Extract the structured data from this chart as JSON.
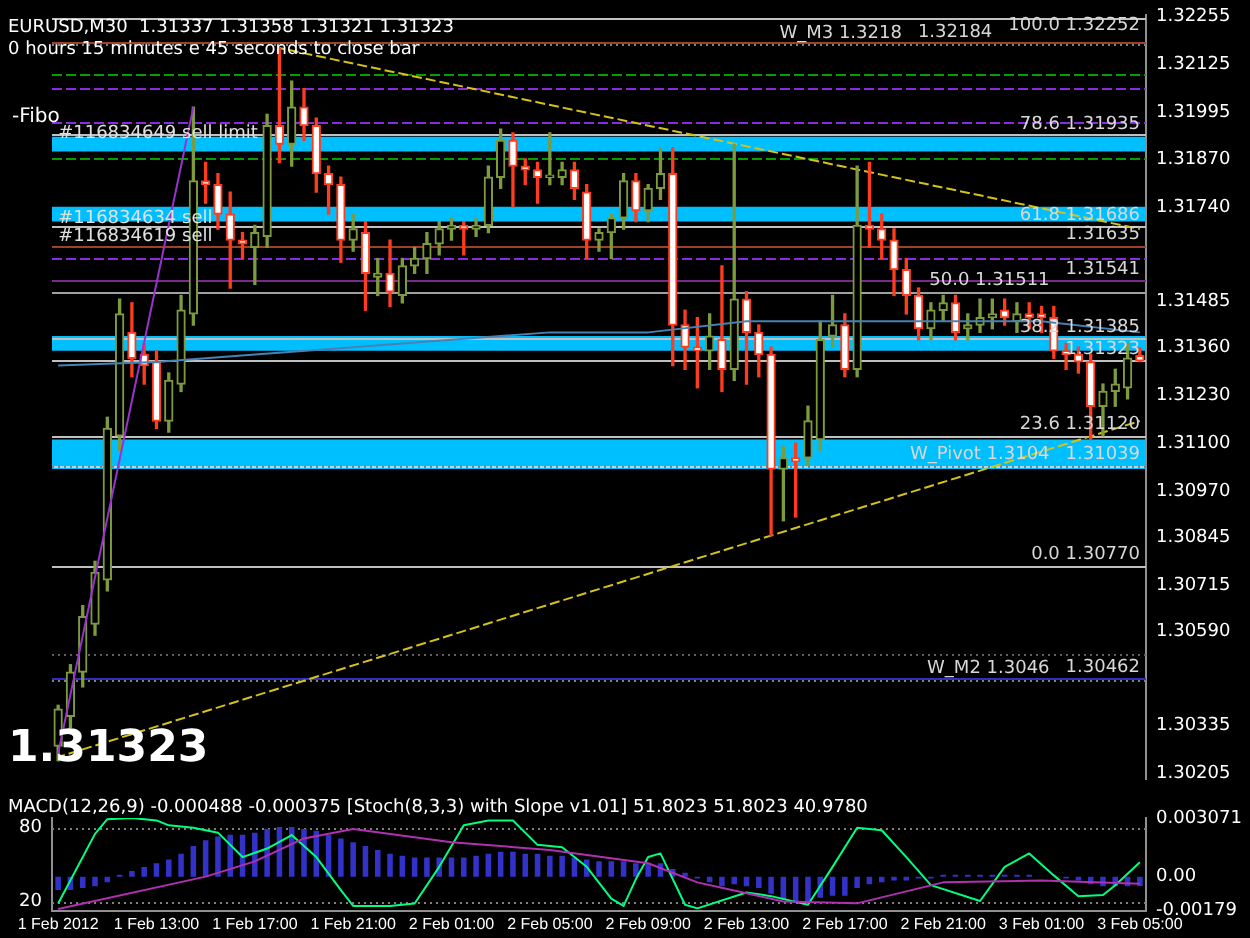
{
  "chart_data": [
    {
      "type": "candlestick",
      "title": "EURUSD,M30  1.31337 1.31358 1.31321 1.31323",
      "subtitle": "0 hours 15 minutes e 45 seconds to close bar",
      "categories": [
        "1 Feb 2012",
        null,
        null,
        null,
        null,
        null,
        null,
        null,
        "1 Feb 13:00",
        null,
        null,
        null,
        null,
        null,
        null,
        null,
        "1 Feb 17:00",
        null,
        null,
        null,
        null,
        null,
        null,
        null,
        "1 Feb 21:00",
        null,
        null,
        null,
        null,
        null,
        null,
        null,
        "2 Feb 01:00",
        null,
        null,
        null,
        null,
        null,
        null,
        null,
        "2 Feb 05:00",
        null,
        null,
        null,
        null,
        null,
        null,
        null,
        "2 Feb 09:00",
        null,
        null,
        null,
        null,
        null,
        null,
        null,
        "2 Feb 13:00",
        null,
        null,
        null,
        null,
        null,
        null,
        null,
        "2 Feb 17:00",
        null,
        null,
        null,
        null,
        null,
        null,
        null,
        "2 Feb 21:00",
        null,
        null,
        null,
        null,
        null,
        null,
        null,
        "3 Feb 01:00",
        null,
        null,
        null,
        null,
        null,
        null,
        null,
        "3 Feb 05:00"
      ],
      "ohlc": [
        [
          1.3028,
          1.3039,
          1.3024,
          1.3038
        ],
        [
          1.3036,
          1.305,
          1.3033,
          1.3048
        ],
        [
          1.3048,
          1.3066,
          1.3044,
          1.3063
        ],
        [
          1.3061,
          1.3078,
          1.3058,
          1.3075
        ],
        [
          1.3073,
          1.3117,
          1.307,
          1.3114
        ],
        [
          1.3112,
          1.3149,
          1.3108,
          1.3145
        ],
        [
          1.314,
          1.3148,
          1.3128,
          1.3133
        ],
        [
          1.3134,
          1.3137,
          1.3126,
          1.3131
        ],
        [
          1.3132,
          1.3135,
          1.3114,
          1.3116
        ],
        [
          1.3116,
          1.3129,
          1.3113,
          1.3127
        ],
        [
          1.3126,
          1.315,
          1.3124,
          1.3146
        ],
        [
          1.3145,
          1.3201,
          1.3142,
          1.3181
        ],
        [
          1.3181,
          1.3186,
          1.3175,
          1.318
        ],
        [
          1.318,
          1.3183,
          1.3168,
          1.3172
        ],
        [
          1.3172,
          1.3178,
          1.3152,
          1.3165
        ],
        [
          1.3165,
          1.3167,
          1.316,
          1.3164
        ],
        [
          1.3163,
          1.3169,
          1.3153,
          1.3167
        ],
        [
          1.3166,
          1.3199,
          1.3163,
          1.3196
        ],
        [
          1.3196,
          1.3217,
          1.3186,
          1.3191
        ],
        [
          1.3191,
          1.3208,
          1.3185,
          1.3201
        ],
        [
          1.3201,
          1.3206,
          1.3192,
          1.3196
        ],
        [
          1.3196,
          1.3198,
          1.3178,
          1.3183
        ],
        [
          1.3183,
          1.3185,
          1.3172,
          1.318
        ],
        [
          1.318,
          1.3182,
          1.3159,
          1.3165
        ],
        [
          1.3165,
          1.3172,
          1.3162,
          1.3168
        ],
        [
          1.3167,
          1.317,
          1.3146,
          1.3156
        ],
        [
          1.3155,
          1.316,
          1.315,
          1.3156
        ],
        [
          1.3156,
          1.3165,
          1.3147,
          1.3151
        ],
        [
          1.315,
          1.316,
          1.3148,
          1.3158
        ],
        [
          1.3158,
          1.3163,
          1.3156,
          1.316
        ],
        [
          1.316,
          1.3167,
          1.3156,
          1.3164
        ],
        [
          1.3164,
          1.317,
          1.3161,
          1.3168
        ],
        [
          1.3168,
          1.3171,
          1.3165,
          1.3169
        ],
        [
          1.3169,
          1.317,
          1.3161,
          1.3168
        ],
        [
          1.3168,
          1.3171,
          1.3166,
          1.3169
        ],
        [
          1.3169,
          1.3185,
          1.3167,
          1.3182
        ],
        [
          1.3182,
          1.3195,
          1.3179,
          1.3192
        ],
        [
          1.3192,
          1.3194,
          1.3174,
          1.3185
        ],
        [
          1.3185,
          1.3187,
          1.318,
          1.3184
        ],
        [
          1.3184,
          1.3186,
          1.3175,
          1.3182
        ],
        [
          1.3182,
          1.3194,
          1.318,
          1.3182
        ],
        [
          1.3182,
          1.3186,
          1.318,
          1.3184
        ],
        [
          1.3184,
          1.3186,
          1.3176,
          1.3179
        ],
        [
          1.3178,
          1.318,
          1.316,
          1.3165
        ],
        [
          1.3165,
          1.3168,
          1.3162,
          1.3167
        ],
        [
          1.3167,
          1.3172,
          1.316,
          1.3171
        ],
        [
          1.3171,
          1.3183,
          1.3168,
          1.3181
        ],
        [
          1.3181,
          1.3183,
          1.317,
          1.3173
        ],
        [
          1.3173,
          1.318,
          1.317,
          1.3179
        ],
        [
          1.3179,
          1.319,
          1.3176,
          1.3183
        ],
        [
          1.3183,
          1.319,
          1.3131,
          1.3142
        ],
        [
          1.3142,
          1.3146,
          1.313,
          1.3136
        ],
        [
          1.3136,
          1.3144,
          1.3125,
          1.3135
        ],
        [
          1.3135,
          1.3145,
          1.313,
          1.3139
        ],
        [
          1.3138,
          1.3158,
          1.3124,
          1.313
        ],
        [
          1.313,
          1.3191,
          1.3127,
          1.3149
        ],
        [
          1.3149,
          1.3151,
          1.3126,
          1.314
        ],
        [
          1.314,
          1.3142,
          1.3128,
          1.3134
        ],
        [
          1.3134,
          1.3136,
          1.3085,
          1.3103
        ],
        [
          1.3103,
          1.3109,
          1.3089,
          1.3106
        ],
        [
          1.3106,
          1.311,
          1.309,
          1.3105
        ],
        [
          1.3106,
          1.312,
          1.3104,
          1.3116
        ],
        [
          1.3111,
          1.3143,
          1.3108,
          1.3138
        ],
        [
          1.3139,
          1.315,
          1.3136,
          1.3142
        ],
        [
          1.3142,
          1.3145,
          1.3128,
          1.313
        ],
        [
          1.313,
          1.3185,
          1.3128,
          1.3169
        ],
        [
          1.3169,
          1.3186,
          1.3163,
          1.3168
        ],
        [
          1.3168,
          1.3172,
          1.316,
          1.3165
        ],
        [
          1.3165,
          1.3168,
          1.315,
          1.3157
        ],
        [
          1.3157,
          1.316,
          1.3145,
          1.315
        ],
        [
          1.315,
          1.3152,
          1.3138,
          1.3141
        ],
        [
          1.3141,
          1.3148,
          1.3138,
          1.3146
        ],
        [
          1.3146,
          1.315,
          1.3143,
          1.3148
        ],
        [
          1.3148,
          1.315,
          1.3138,
          1.314
        ],
        [
          1.3141,
          1.3145,
          1.3138,
          1.3142
        ],
        [
          1.3142,
          1.3149,
          1.314,
          1.3144
        ],
        [
          1.3144,
          1.3149,
          1.3141,
          1.3145
        ],
        [
          1.3146,
          1.3149,
          1.3142,
          1.3144
        ],
        [
          1.3143,
          1.3148,
          1.314,
          1.3145
        ],
        [
          1.3145,
          1.3148,
          1.3141,
          1.3144
        ],
        [
          1.3145,
          1.3147,
          1.314,
          1.3144
        ],
        [
          1.3144,
          1.3147,
          1.3133,
          1.3135
        ],
        [
          1.3135,
          1.3137,
          1.313,
          1.3134
        ],
        [
          1.3134,
          1.3136,
          1.3129,
          1.3132
        ],
        [
          1.3132,
          1.3134,
          1.3111,
          1.312
        ],
        [
          1.312,
          1.3126,
          1.3112,
          1.3124
        ],
        [
          1.3124,
          1.313,
          1.312,
          1.3126
        ],
        [
          1.3125,
          1.3137,
          1.3122,
          1.3133
        ],
        [
          1.31337,
          1.31358,
          1.31321,
          1.31323
        ]
      ],
      "series": [
        {
          "type": "line",
          "color": "#4682b4",
          "values": [
            1.3131,
            null,
            null,
            null,
            null,
            null,
            null,
            null,
            1.3132,
            null,
            null,
            null,
            null,
            null,
            null,
            null,
            1.3134,
            null,
            null,
            null,
            null,
            null,
            null,
            null,
            1.3136,
            null,
            null,
            null,
            null,
            null,
            null,
            null,
            1.3138,
            null,
            null,
            null,
            null,
            null,
            null,
            null,
            1.314,
            null,
            null,
            null,
            null,
            null,
            null,
            null,
            1.314,
            null,
            null,
            null,
            null,
            null,
            null,
            null,
            1.3143,
            null,
            null,
            null,
            null,
            null,
            null,
            null,
            1.3143,
            null,
            null,
            null,
            null,
            null,
            null,
            null,
            1.3143,
            null,
            null,
            null,
            null,
            null,
            null,
            null,
            1.3143,
            null,
            null,
            null,
            null,
            null,
            null,
            null,
            1.314
          ]
        },
        {
          "type": "line",
          "color": "#d4c21a",
          "line_style": "dashed",
          "values": [
            null,
            null,
            null,
            null,
            null,
            null,
            null,
            null,
            null,
            null,
            null,
            null,
            null,
            null,
            null,
            null,
            null,
            null,
            1.3217,
            null,
            null,
            null,
            null,
            null,
            null,
            null,
            null,
            null,
            null,
            null,
            null,
            null,
            null,
            null,
            null,
            null,
            null,
            null,
            null,
            null,
            null,
            null,
            null,
            null,
            null,
            null,
            null,
            null,
            null,
            null,
            null,
            null,
            null,
            null,
            null,
            null,
            null,
            null,
            null,
            null,
            null,
            null,
            null,
            null,
            null,
            null,
            null,
            null,
            null,
            null,
            null,
            null,
            null,
            null,
            null,
            null,
            null,
            null,
            null,
            null,
            null,
            null,
            null,
            null,
            null,
            null,
            null,
            null,
            1.3168
          ]
        },
        {
          "type": "line",
          "color": "#d4c21a",
          "line_style": "dashed",
          "values": [
            1.3025,
            null,
            null,
            null,
            null,
            null,
            null,
            null,
            null,
            null,
            null,
            null,
            null,
            null,
            null,
            null,
            null,
            null,
            null,
            null,
            null,
            null,
            null,
            null,
            null,
            null,
            null,
            null,
            null,
            null,
            null,
            null,
            null,
            null,
            null,
            null,
            null,
            null,
            null,
            null,
            null,
            null,
            null,
            null,
            null,
            null,
            null,
            null,
            null,
            null,
            null,
            null,
            null,
            null,
            null,
            null,
            null,
            null,
            null,
            null,
            null,
            null,
            null,
            null,
            null,
            null,
            null,
            null,
            null,
            null,
            null,
            null,
            null,
            null,
            null,
            null,
            null,
            null,
            null,
            null,
            null,
            null,
            null,
            null,
            null,
            null,
            null,
            null,
            1.3116
          ]
        },
        {
          "type": "line",
          "color": "#9a32cd",
          "values": [
            1.3026,
            null,
            null,
            null,
            null,
            null,
            null,
            null,
            null,
            null,
            null,
            1.3201,
            null,
            null,
            null,
            null,
            null,
            null,
            null,
            null,
            null,
            null,
            null,
            null,
            null,
            null,
            null,
            null,
            null,
            null,
            null,
            null,
            null,
            null,
            null,
            null,
            null,
            null,
            null,
            null,
            null,
            null,
            null,
            null,
            null,
            null,
            null,
            null,
            null,
            null,
            null,
            null,
            null,
            null,
            null,
            null,
            null,
            null,
            null,
            null,
            null,
            null,
            null,
            null,
            null,
            null,
            null,
            null,
            null,
            null,
            null,
            null,
            null,
            null,
            null,
            null,
            null,
            null,
            null,
            null,
            null,
            null,
            null,
            null,
            null,
            null,
            null,
            null,
            null
          ]
        }
      ],
      "ylim": [
        1.3019,
        1.3226
      ],
      "yticks": [
        1.32255,
        1.32125,
        1.31995,
        {
          "value": 1.3187,
          "label": "1.31870"
        },
        {
          "value": 1.3174,
          "label": "1.31740"
        },
        1.31485,
        {
          "value": 1.3136,
          "label": "1.31360"
        },
        {
          "value": 1.3123,
          "label": "1.31230"
        },
        {
          "value": 1.311,
          "label": "1.31100"
        },
        {
          "value": 1.3097,
          "label": "1.30970"
        },
        1.30845,
        1.30715,
        {
          "value": 1.3059,
          "label": "1.30590"
        },
        1.30335,
        1.30205
      ],
      "tick_labels": "y",
      "bands": [
        {
          "axis": "y",
          "from": 1.3189,
          "to": 1.3193,
          "color": "#00bfff"
        },
        {
          "axis": "y",
          "from": 1.317,
          "to": 1.3174,
          "color": "#00bfff"
        },
        {
          "axis": "y",
          "from": 1.3135,
          "to": 1.3139,
          "color": "#00bfff"
        },
        {
          "axis": "y",
          "from": 1.3103,
          "to": 1.3111,
          "color": "#00bfff"
        }
      ],
      "ref_lines": [
        {
          "axis": "y",
          "value": 1.32252,
          "label": "100.0 1.32252",
          "color": "#c0c0c0"
        },
        {
          "axis": "y",
          "value": 1.32184,
          "label": "1.32184",
          "color": "#a0402a"
        },
        {
          "axis": "y",
          "value": 1.3218,
          "label": "W_M3 1.3218",
          "color": "#808080",
          "line_style": "dotted"
        },
        {
          "axis": "y",
          "value": 1.321,
          "color": "#00a000",
          "line_style": "dashed"
        },
        {
          "axis": "y",
          "value": 1.3206,
          "color": "#8a2be2",
          "line_style": "dashed"
        },
        {
          "axis": "y",
          "value": 1.3197,
          "color": "#8a2be2",
          "line_style": "dashed"
        },
        {
          "axis": "y",
          "value": 1.31935,
          "label": "78.6 1.31935",
          "color": "#c0c0c0"
        },
        {
          "axis": "y",
          "value": 1.3187,
          "color": "#00a000",
          "line_style": "dashed"
        },
        {
          "axis": "y",
          "value": 1.31686,
          "label": "61.8 1.31686",
          "color": "#c0c0c0"
        },
        {
          "axis": "y",
          "value": 1.31635,
          "label": "1.31635",
          "color": "#a0402a"
        },
        {
          "axis": "y",
          "value": 1.316,
          "color": "#8a2be2",
          "line_style": "dashed"
        },
        {
          "axis": "y",
          "value": 1.31541,
          "label": "1.31541",
          "color": "#7a2a8a"
        },
        {
          "axis": "y",
          "value": 1.31511,
          "label": "50.0 1.31511",
          "color": "#a0a0a0"
        },
        {
          "axis": "y",
          "value": 1.31385,
          "label": "38.2 1.31385",
          "color": "#c0c0c0"
        },
        {
          "axis": "y",
          "value": 1.31323,
          "label": "1.31323",
          "color": "#c0c0c0"
        },
        {
          "axis": "y",
          "value": 1.3112,
          "label": "23.6 1.31120",
          "color": "#c0c0c0"
        },
        {
          "axis": "y",
          "value": 1.31039,
          "label": "1.31039",
          "color": "#add8e6"
        },
        {
          "axis": "y",
          "value": 1.3104,
          "label": "W_Pivot 1.3104",
          "color": "#808080",
          "line_style": "dotted"
        },
        {
          "axis": "y",
          "value": 1.3077,
          "label": "0.0 1.30770",
          "color": "#c0c0c0"
        },
        {
          "axis": "y",
          "value": 1.3053,
          "color": "#606060",
          "line_style": "dotted"
        },
        {
          "axis": "y",
          "value": 1.30462,
          "label": "1.30462",
          "color": "#3030c0"
        },
        {
          "axis": "y",
          "value": 1.3046,
          "label": "W_M2 1.3046",
          "color": "#808080",
          "line_style": "dotted"
        }
      ],
      "annotations": [
        "-Fibo",
        {
          "text": "#116834649 sell limit",
          "x": "1 Feb 2012",
          "y": 1.3191
        },
        {
          "text": "#116834634 sell",
          "x": "1 Feb 2012",
          "y": 1.3168
        },
        {
          "text": "#116834619 sell",
          "x": "1 Feb 2012",
          "y": 1.3163
        },
        "1.31323"
      ]
    },
    {
      "type": "bar",
      "title": "MACD(12,26,9) -0.000488 -0.000375 [Stoch(8,3,3) with Slope v1.01] 51.8023 51.8023 40.9780",
      "categories": [
        "1 Feb 2012",
        null,
        null,
        null,
        null,
        null,
        null,
        null,
        "1 Feb 13:00",
        null,
        null,
        null,
        null,
        null,
        null,
        null,
        "1 Feb 17:00",
        null,
        null,
        null,
        null,
        null,
        null,
        null,
        "1 Feb 21:00",
        null,
        null,
        null,
        null,
        null,
        null,
        null,
        "2 Feb 01:00",
        null,
        null,
        null,
        null,
        null,
        null,
        null,
        "2 Feb 05:00",
        null,
        null,
        null,
        null,
        null,
        null,
        null,
        "2 Feb 09:00",
        null,
        null,
        null,
        null,
        null,
        null,
        null,
        "2 Feb 13:00",
        null,
        null,
        null,
        null,
        null,
        null,
        null,
        "2 Feb 17:00",
        null,
        null,
        null,
        null,
        null,
        null,
        null,
        "2 Feb 21:00",
        null,
        null,
        null,
        null,
        null,
        null,
        null,
        "3 Feb 01:00",
        null,
        null,
        null,
        null,
        null,
        null,
        null,
        "3 Feb 05:00"
      ],
      "series": [
        {
          "type": "bar",
          "color": "#3232c8",
          "values": [
            -0.0007,
            -0.0007,
            -0.0006,
            -0.0005,
            -0.0003,
            0.0001,
            0.0003,
            0.0005,
            0.0007,
            0.0009,
            0.0012,
            0.0016,
            0.0019,
            0.0021,
            0.0022,
            0.0022,
            0.0023,
            0.0025,
            0.0026,
            0.0026,
            0.0025,
            0.0024,
            0.0022,
            0.002,
            0.0018,
            0.0016,
            0.0014,
            0.0012,
            0.0011,
            0.001,
            0.001,
            0.001,
            0.001,
            0.001,
            0.0011,
            0.0012,
            0.0013,
            0.0013,
            0.0012,
            0.0012,
            0.0011,
            0.0011,
            0.001,
            0.0009,
            0.0008,
            0.0008,
            0.0008,
            0.0007,
            0.0007,
            0.0007,
            0.0004,
            0.0002,
            -0.0001,
            -0.0003,
            -0.0005,
            -0.0004,
            -0.0005,
            -0.0006,
            -0.0009,
            -0.0012,
            -0.0013,
            -0.0013,
            -0.0011,
            -0.001,
            -0.001,
            -0.0006,
            -0.0004,
            -0.0003,
            -0.0002,
            -0.0002,
            -0.0001,
            -0.0001,
            0.0001,
            0.0001,
            0.0001,
            0.0001,
            0.0001,
            0.0001,
            0.0001,
            0.0001,
            0.0,
            0.0,
            -0.0001,
            -0.0002,
            -0.0004,
            -0.0005,
            -0.0005,
            -0.0005,
            -0.000488
          ]
        },
        {
          "type": "line",
          "color": "#b030b0",
          "values": [
            -0.0017,
            null,
            null,
            null,
            null,
            null,
            null,
            null,
            null,
            null,
            null,
            null,
            0.0,
            null,
            null,
            null,
            0.0008,
            null,
            null,
            null,
            0.002,
            null,
            null,
            null,
            0.0025,
            null,
            null,
            null,
            null,
            null,
            null,
            null,
            0.0018,
            null,
            null,
            null,
            null,
            null,
            null,
            null,
            0.0014,
            null,
            null,
            null,
            null,
            null,
            null,
            null,
            0.0007,
            null,
            null,
            null,
            -0.0003,
            null,
            null,
            null,
            null,
            null,
            null,
            -0.0013,
            null,
            null,
            null,
            null,
            null,
            -0.0014,
            null,
            null,
            null,
            null,
            null,
            null,
            -0.0003,
            null,
            null,
            null,
            null,
            null,
            null,
            null,
            -0.0002,
            null,
            null,
            null,
            null,
            null,
            null,
            null,
            -0.000375
          ]
        },
        {
          "type": "line",
          "axis": "y2",
          "color": "#00ff7f",
          "values": [
            18,
            null,
            null,
            75,
            87,
            null,
            88,
            null,
            86,
            82,
            null,
            80,
            null,
            76,
            null,
            56,
            null,
            63,
            null,
            74,
            null,
            56,
            null,
            29,
            16,
            null,
            null,
            16,
            null,
            18,
            null,
            48,
            null,
            82,
            null,
            86,
            null,
            86,
            null,
            66,
            null,
            64,
            null,
            48,
            null,
            22,
            16,
            38,
            56,
            59,
            null,
            17,
            14,
            null,
            null,
            null,
            27,
            null,
            24,
            null,
            null,
            17,
            null,
            48,
            null,
            80,
            null,
            78,
            null,
            56,
            null,
            33,
            null,
            null,
            null,
            20,
            null,
            48,
            null,
            59,
            null,
            41,
            null,
            24,
            null,
            25,
            33,
            null,
            51.8
          ]
        }
      ],
      "ylim": [
        -0.00179,
        0.003071
      ],
      "yticks": [
        0.003071,
        {
          "value": 0,
          "label": "0.00"
        },
        -0.00179
      ],
      "y2lim": [
        12,
        88
      ],
      "y2ticks": [
        80,
        20
      ],
      "ref_lines": [
        {
          "axis": "y2",
          "value": 80,
          "color": "#808080",
          "line_style": "dotted"
        },
        {
          "axis": "y2",
          "value": 20,
          "color": "#808080",
          "line_style": "dotted"
        }
      ]
    }
  ]
}
